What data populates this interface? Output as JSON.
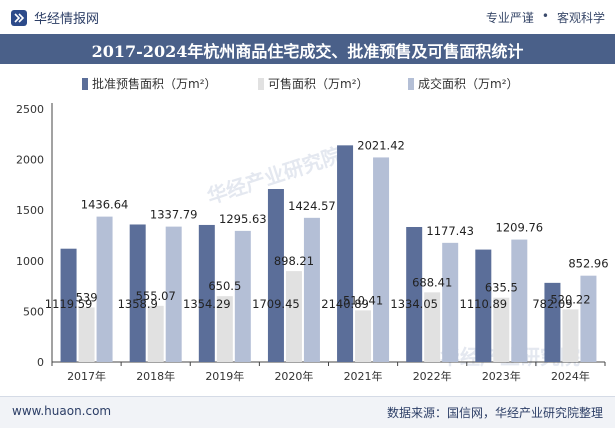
{
  "header": {
    "brand": "华经情报网",
    "tagline_left": "专业严谨",
    "tagline_right": "客观科学"
  },
  "title": "2017-2024年杭州商品住宅成交、批准预售及可售面积统计",
  "footer": {
    "website": "www.huaon.com",
    "source": "数据来源：国信网，华经产业研究院整理"
  },
  "watermark": "华经产业研究院",
  "colors": {
    "series1": "#5b6e99",
    "series2": "#e1e1e1",
    "series3": "#b4bfd6",
    "header_bar": "#4a6089"
  },
  "chart_data": {
    "type": "bar",
    "categories": [
      "2017年",
      "2018年",
      "2019年",
      "2020年",
      "2021年",
      "2022年",
      "2023年",
      "2024年"
    ],
    "series": [
      {
        "name": "批准预售面积（万m²）",
        "values": [
          1119.59,
          1358.9,
          1354.29,
          1709.45,
          2140.89,
          1334.05,
          1110.89,
          782.09
        ],
        "labels": [
          "1119.59",
          "1358.9",
          "1354.29",
          "1709.45",
          "2140.89",
          "1334.05",
          "1110.89",
          "782.09"
        ]
      },
      {
        "name": "可售面积（万m²）",
        "values": [
          539,
          555.07,
          650.5,
          898.21,
          510.41,
          688.41,
          635.5,
          520.22
        ],
        "labels": [
          "539",
          "555.07",
          "650.5",
          "898.21",
          "510.41",
          "688.41",
          "635.5",
          "520.22"
        ]
      },
      {
        "name": "成交面积（万m²）",
        "values": [
          1436.64,
          1337.79,
          1295.63,
          1424.57,
          2021.42,
          1177.43,
          1209.76,
          852.96
        ],
        "labels": [
          "1436.64",
          "1337.79",
          "1295.63",
          "1424.57",
          "2021.42",
          "1177.43",
          "1209.76",
          "852.96"
        ]
      }
    ],
    "yticks": [
      "0",
      "500",
      "1000",
      "1500",
      "2000",
      "2500"
    ],
    "ylim": [
      0,
      2500
    ],
    "legend_position": "top-left",
    "grid": false
  }
}
